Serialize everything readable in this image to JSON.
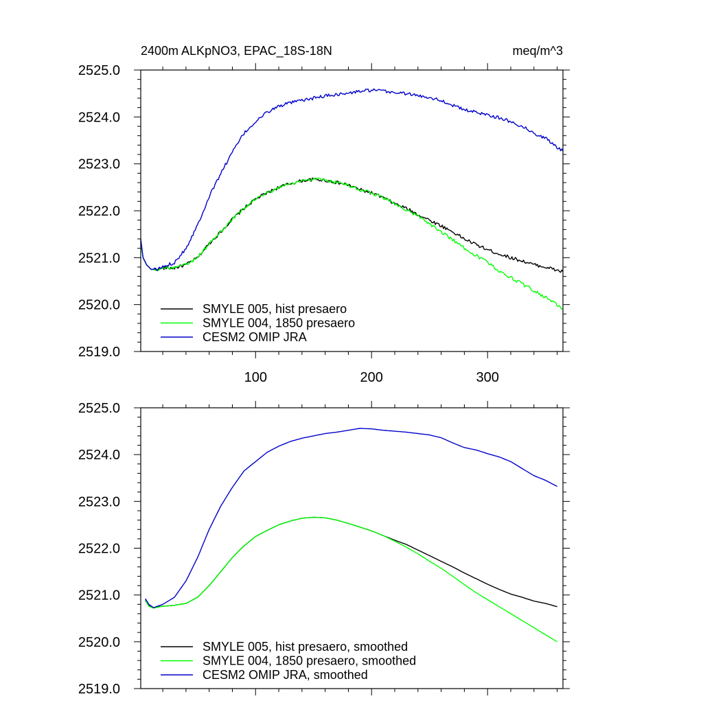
{
  "chart_data": [
    {
      "type": "line",
      "title_left": "2400m ALKpNO3, EPAC_18S-18N",
      "title_right": "meq/m^3",
      "xlabel": "",
      "ylabel": "",
      "xlim": [
        1,
        365
      ],
      "ylim": [
        2519.0,
        2525.0
      ],
      "yticks": [
        2519.0,
        2520.0,
        2521.0,
        2522.0,
        2523.0,
        2524.0,
        2525.0
      ],
      "ytick_labels": [
        "2519.0",
        "2520.0",
        "2521.0",
        "2522.0",
        "2523.0",
        "2524.0",
        "2525.0"
      ],
      "xticks": [
        100,
        200,
        300
      ],
      "xtick_labels": [
        "100",
        "200",
        "300"
      ],
      "noisy": true,
      "legend_position": "bottom-left",
      "series": [
        {
          "name": "SMYLE 005, hist presaero",
          "color": "#000000",
          "points": [
            [
              1,
              2521.35
            ],
            [
              3,
              2521.0
            ],
            [
              6,
              2520.85
            ],
            [
              10,
              2520.75
            ],
            [
              15,
              2520.75
            ],
            [
              20,
              2520.78
            ],
            [
              30,
              2520.78
            ],
            [
              40,
              2520.85
            ],
            [
              50,
              2521.0
            ],
            [
              60,
              2521.3
            ],
            [
              70,
              2521.55
            ],
            [
              80,
              2521.82
            ],
            [
              90,
              2522.05
            ],
            [
              100,
              2522.25
            ],
            [
              110,
              2522.38
            ],
            [
              120,
              2522.5
            ],
            [
              130,
              2522.58
            ],
            [
              140,
              2522.64
            ],
            [
              150,
              2522.67
            ],
            [
              160,
              2522.65
            ],
            [
              170,
              2522.6
            ],
            [
              180,
              2522.55
            ],
            [
              190,
              2522.45
            ],
            [
              200,
              2522.38
            ],
            [
              210,
              2522.28
            ],
            [
              220,
              2522.15
            ],
            [
              230,
              2522.05
            ],
            [
              240,
              2521.92
            ],
            [
              250,
              2521.8
            ],
            [
              260,
              2521.68
            ],
            [
              270,
              2521.55
            ],
            [
              280,
              2521.4
            ],
            [
              290,
              2521.28
            ],
            [
              300,
              2521.17
            ],
            [
              310,
              2521.08
            ],
            [
              320,
              2521.0
            ],
            [
              330,
              2520.93
            ],
            [
              340,
              2520.85
            ],
            [
              350,
              2520.8
            ],
            [
              360,
              2520.73
            ],
            [
              365,
              2520.7
            ]
          ]
        },
        {
          "name": "SMYLE 004, 1850 presaero",
          "color": "#00ff00",
          "points": [
            [
              1,
              2521.3
            ],
            [
              3,
              2521.0
            ],
            [
              6,
              2520.85
            ],
            [
              10,
              2520.75
            ],
            [
              15,
              2520.75
            ],
            [
              20,
              2520.78
            ],
            [
              30,
              2520.78
            ],
            [
              40,
              2520.85
            ],
            [
              50,
              2521.0
            ],
            [
              60,
              2521.3
            ],
            [
              70,
              2521.55
            ],
            [
              80,
              2521.82
            ],
            [
              90,
              2522.05
            ],
            [
              100,
              2522.25
            ],
            [
              110,
              2522.38
            ],
            [
              120,
              2522.5
            ],
            [
              130,
              2522.58
            ],
            [
              140,
              2522.64
            ],
            [
              150,
              2522.67
            ],
            [
              160,
              2522.65
            ],
            [
              170,
              2522.6
            ],
            [
              180,
              2522.55
            ],
            [
              190,
              2522.45
            ],
            [
              200,
              2522.38
            ],
            [
              210,
              2522.28
            ],
            [
              220,
              2522.15
            ],
            [
              230,
              2522.02
            ],
            [
              240,
              2521.88
            ],
            [
              250,
              2521.72
            ],
            [
              260,
              2521.55
            ],
            [
              270,
              2521.38
            ],
            [
              280,
              2521.2
            ],
            [
              290,
              2521.05
            ],
            [
              300,
              2520.9
            ],
            [
              310,
              2520.72
            ],
            [
              320,
              2520.58
            ],
            [
              330,
              2520.44
            ],
            [
              340,
              2520.3
            ],
            [
              350,
              2520.15
            ],
            [
              360,
              2520.0
            ],
            [
              365,
              2519.9
            ]
          ]
        },
        {
          "name": "CESM2 OMIP JRA",
          "color": "#0000cc",
          "points": [
            [
              1,
              2521.4
            ],
            [
              3,
              2521.0
            ],
            [
              6,
              2520.85
            ],
            [
              10,
              2520.75
            ],
            [
              15,
              2520.75
            ],
            [
              20,
              2520.8
            ],
            [
              30,
              2520.9
            ],
            [
              40,
              2521.2
            ],
            [
              50,
              2521.7
            ],
            [
              60,
              2522.3
            ],
            [
              70,
              2522.8
            ],
            [
              80,
              2523.25
            ],
            [
              90,
              2523.65
            ],
            [
              100,
              2523.9
            ],
            [
              110,
              2524.1
            ],
            [
              120,
              2524.23
            ],
            [
              130,
              2524.3
            ],
            [
              140,
              2524.35
            ],
            [
              150,
              2524.4
            ],
            [
              160,
              2524.45
            ],
            [
              170,
              2524.48
            ],
            [
              180,
              2524.5
            ],
            [
              190,
              2524.55
            ],
            [
              200,
              2524.57
            ],
            [
              210,
              2524.55
            ],
            [
              220,
              2524.52
            ],
            [
              230,
              2524.5
            ],
            [
              240,
              2524.45
            ],
            [
              250,
              2524.42
            ],
            [
              260,
              2524.35
            ],
            [
              270,
              2524.25
            ],
            [
              280,
              2524.15
            ],
            [
              290,
              2524.1
            ],
            [
              300,
              2524.05
            ],
            [
              310,
              2523.98
            ],
            [
              320,
              2523.9
            ],
            [
              330,
              2523.8
            ],
            [
              340,
              2523.65
            ],
            [
              350,
              2523.55
            ],
            [
              360,
              2523.35
            ],
            [
              365,
              2523.27
            ]
          ]
        }
      ]
    },
    {
      "type": "line",
      "title_left": "",
      "title_right": "",
      "xlabel": "",
      "ylabel": "",
      "xlim": [
        1,
        365
      ],
      "ylim": [
        2519.0,
        2525.0
      ],
      "yticks": [
        2519.0,
        2520.0,
        2521.0,
        2522.0,
        2523.0,
        2524.0,
        2525.0
      ],
      "ytick_labels": [
        "2519.0",
        "2520.0",
        "2521.0",
        "2522.0",
        "2523.0",
        "2524.0",
        "2525.0"
      ],
      "xticks": [
        100,
        200,
        300
      ],
      "xtick_labels": [],
      "noisy": false,
      "legend_position": "bottom-left",
      "series": [
        {
          "name": "SMYLE 005, hist presaero, smoothed",
          "color": "#000000",
          "points": [
            [
              5,
              2520.9
            ],
            [
              8,
              2520.78
            ],
            [
              12,
              2520.73
            ],
            [
              20,
              2520.76
            ],
            [
              30,
              2520.78
            ],
            [
              40,
              2520.82
            ],
            [
              50,
              2520.95
            ],
            [
              60,
              2521.2
            ],
            [
              70,
              2521.5
            ],
            [
              80,
              2521.8
            ],
            [
              90,
              2522.05
            ],
            [
              100,
              2522.25
            ],
            [
              110,
              2522.38
            ],
            [
              120,
              2522.5
            ],
            [
              130,
              2522.58
            ],
            [
              140,
              2522.64
            ],
            [
              150,
              2522.66
            ],
            [
              160,
              2522.65
            ],
            [
              170,
              2522.6
            ],
            [
              180,
              2522.53
            ],
            [
              190,
              2522.45
            ],
            [
              200,
              2522.37
            ],
            [
              210,
              2522.27
            ],
            [
              220,
              2522.17
            ],
            [
              230,
              2522.08
            ],
            [
              240,
              2521.96
            ],
            [
              250,
              2521.84
            ],
            [
              260,
              2521.72
            ],
            [
              270,
              2521.6
            ],
            [
              280,
              2521.47
            ],
            [
              290,
              2521.35
            ],
            [
              300,
              2521.23
            ],
            [
              310,
              2521.12
            ],
            [
              320,
              2521.02
            ],
            [
              330,
              2520.95
            ],
            [
              340,
              2520.87
            ],
            [
              350,
              2520.82
            ],
            [
              360,
              2520.75
            ]
          ]
        },
        {
          "name": "SMYLE 004, 1850 presaero, smoothed",
          "color": "#00ff00",
          "points": [
            [
              5,
              2520.88
            ],
            [
              8,
              2520.76
            ],
            [
              12,
              2520.72
            ],
            [
              20,
              2520.76
            ],
            [
              30,
              2520.78
            ],
            [
              40,
              2520.82
            ],
            [
              50,
              2520.95
            ],
            [
              60,
              2521.2
            ],
            [
              70,
              2521.5
            ],
            [
              80,
              2521.8
            ],
            [
              90,
              2522.05
            ],
            [
              100,
              2522.25
            ],
            [
              110,
              2522.38
            ],
            [
              120,
              2522.5
            ],
            [
              130,
              2522.58
            ],
            [
              140,
              2522.64
            ],
            [
              150,
              2522.66
            ],
            [
              160,
              2522.65
            ],
            [
              170,
              2522.6
            ],
            [
              180,
              2522.53
            ],
            [
              190,
              2522.45
            ],
            [
              200,
              2522.37
            ],
            [
              210,
              2522.27
            ],
            [
              220,
              2522.15
            ],
            [
              230,
              2522.02
            ],
            [
              240,
              2521.88
            ],
            [
              250,
              2521.72
            ],
            [
              260,
              2521.57
            ],
            [
              270,
              2521.4
            ],
            [
              280,
              2521.22
            ],
            [
              290,
              2521.05
            ],
            [
              300,
              2520.9
            ],
            [
              310,
              2520.75
            ],
            [
              320,
              2520.6
            ],
            [
              330,
              2520.45
            ],
            [
              340,
              2520.3
            ],
            [
              350,
              2520.15
            ],
            [
              360,
              2520.0
            ]
          ]
        },
        {
          "name": "CESM2 OMIP JRA, smoothed",
          "color": "#0000cc",
          "points": [
            [
              5,
              2520.92
            ],
            [
              8,
              2520.8
            ],
            [
              12,
              2520.73
            ],
            [
              20,
              2520.8
            ],
            [
              30,
              2520.95
            ],
            [
              40,
              2521.3
            ],
            [
              50,
              2521.8
            ],
            [
              60,
              2522.4
            ],
            [
              70,
              2522.9
            ],
            [
              80,
              2523.3
            ],
            [
              90,
              2523.65
            ],
            [
              100,
              2523.85
            ],
            [
              110,
              2524.05
            ],
            [
              120,
              2524.18
            ],
            [
              130,
              2524.28
            ],
            [
              140,
              2524.35
            ],
            [
              150,
              2524.4
            ],
            [
              160,
              2524.45
            ],
            [
              170,
              2524.48
            ],
            [
              180,
              2524.52
            ],
            [
              190,
              2524.56
            ],
            [
              200,
              2524.55
            ],
            [
              210,
              2524.52
            ],
            [
              220,
              2524.5
            ],
            [
              230,
              2524.48
            ],
            [
              240,
              2524.45
            ],
            [
              250,
              2524.42
            ],
            [
              260,
              2524.36
            ],
            [
              270,
              2524.25
            ],
            [
              280,
              2524.15
            ],
            [
              290,
              2524.1
            ],
            [
              300,
              2524.02
            ],
            [
              310,
              2523.95
            ],
            [
              320,
              2523.85
            ],
            [
              330,
              2523.7
            ],
            [
              340,
              2523.55
            ],
            [
              350,
              2523.45
            ],
            [
              360,
              2523.32
            ]
          ]
        }
      ]
    }
  ]
}
